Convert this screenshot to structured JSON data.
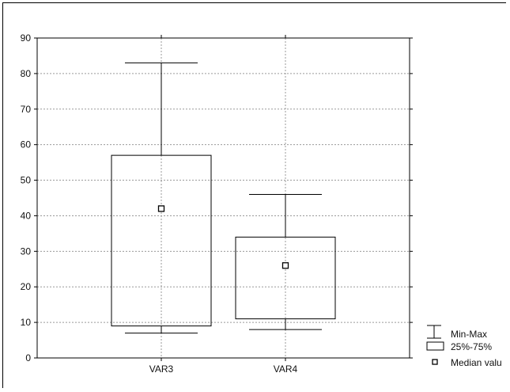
{
  "chart_data": {
    "type": "box",
    "categories": [
      "VAR3",
      "VAR4"
    ],
    "series": [
      {
        "category": "VAR3",
        "min": 7,
        "q1": 9,
        "median": 42,
        "q3": 57,
        "max": 83
      },
      {
        "category": "VAR4",
        "min": 8,
        "q1": 11,
        "median": 26,
        "q3": 34,
        "max": 46
      }
    ],
    "ylim": [
      0,
      90
    ],
    "yticks": [
      0,
      10,
      20,
      30,
      40,
      50,
      60,
      70,
      80,
      90
    ],
    "grid": true,
    "legend_position": "bottom-right",
    "legend": {
      "minmax_label": "Min-Max",
      "box_label": "25%-75%",
      "median_label": "Median valu"
    }
  }
}
